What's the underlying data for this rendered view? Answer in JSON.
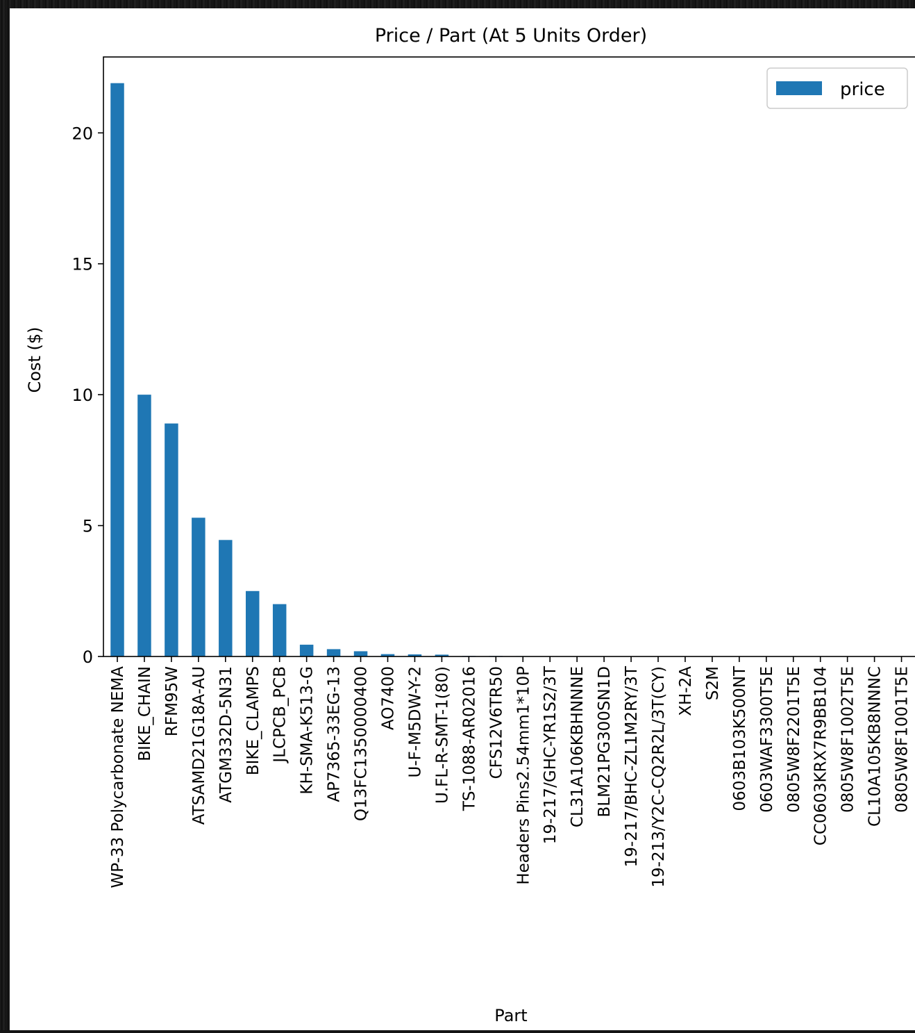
{
  "chart_data": {
    "type": "bar",
    "title": "Price / Part (At 5 Units Order)",
    "xlabel": "Part",
    "ylabel": "Cost ($)",
    "ylim": [
      0,
      22.9
    ],
    "yticks": [
      0,
      5,
      10,
      15,
      20
    ],
    "grid": false,
    "legend_position": "top-right",
    "colors": {
      "bar": "#1f77b4"
    },
    "categories": [
      "WP-33 Polycarbonate NEMA",
      "BIKE_CHAIN",
      "RFM95W",
      "ATSAMD21G18A-AU",
      "ATGM332D-5N31",
      "BIKE_CLAMPS",
      "JLCPCB_PCB",
      "KH-SMA-K513-G",
      "AP7365-33EG-13",
      "Q13FC1350000400",
      "AO7400",
      "U-F-M5DW-Y-2",
      "U.FL-R-SMT-1(80)",
      "TS-1088-AR02016",
      "CFS12V6TR50",
      "Headers Pins2.54mm1*10P",
      "19-217/GHC-YR1S2/3T",
      "CL31A106KBHNNNE",
      "BLM21PG300SN1D",
      "19-217/BHC-ZL1M2RY/3T",
      "19-213/Y2C-CQ2R2L/3T(CY)",
      "XH-2A",
      "S2M",
      "0603B103K500NT",
      "0603WAF3300T5E",
      "0805W8F2201T5E",
      "CC0603KRX7R9BB104",
      "0805W8F1002T5E",
      "CL10A105KB8NNNC",
      "0805W8F1001T5E"
    ],
    "series": [
      {
        "name": "price",
        "values": [
          21.9,
          10.0,
          8.9,
          5.3,
          4.45,
          2.5,
          2.0,
          0.45,
          0.28,
          0.2,
          0.09,
          0.08,
          0.07,
          0.02,
          0.02,
          0.015,
          0.012,
          0.01,
          0.01,
          0.008,
          0.008,
          0.007,
          0.006,
          0.004,
          0.003,
          0.003,
          0.003,
          0.002,
          0.002,
          0.002
        ]
      }
    ]
  }
}
